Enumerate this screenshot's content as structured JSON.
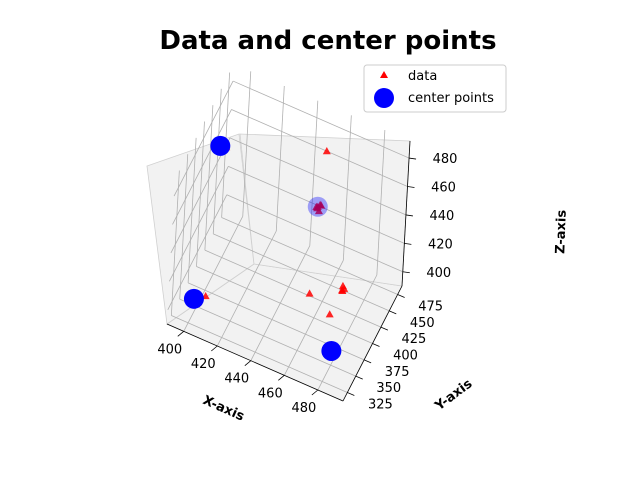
{
  "chart_data": {
    "type": "scatter",
    "projection": "3d",
    "title": "Data and center points",
    "xlabel": "X-axis",
    "ylabel": "Y-axis",
    "zlabel": "Z-axis",
    "xlim": [
      390,
      495
    ],
    "ylim": [
      312,
      488
    ],
    "zlim": [
      390,
      492
    ],
    "xticks": [
      400,
      420,
      440,
      460,
      480
    ],
    "yticks": [
      325,
      350,
      375,
      400,
      425,
      450,
      475
    ],
    "zticks": [
      400,
      420,
      440,
      460,
      480
    ],
    "grid": true,
    "legend_position": "upper-right",
    "series": [
      {
        "name": "data",
        "marker": "triangle",
        "color": "#ff0000",
        "points": [
          [
            400,
            400,
            480
          ],
          [
            401,
            401,
            481
          ],
          [
            402,
            399,
            482
          ],
          [
            399,
            402,
            479
          ],
          [
            400,
            399,
            483
          ],
          [
            402,
            402,
            478
          ],
          [
            398,
            400,
            481
          ],
          [
            401,
            398,
            480
          ],
          [
            400,
            420,
            470
          ],
          [
            480,
            350,
            400
          ],
          [
            481,
            352,
            401
          ],
          [
            479,
            351,
            399
          ],
          [
            482,
            350,
            402
          ],
          [
            480,
            348,
            400
          ],
          [
            481,
            349,
            398
          ],
          [
            470,
            395,
            400
          ],
          [
            455,
            410,
            400
          ],
          [
            400,
            340,
            400
          ],
          [
            401,
            341,
            401
          ],
          [
            402,
            339,
            400
          ],
          [
            399,
            342,
            399
          ],
          [
            401,
            340,
            402
          ],
          [
            402,
            341,
            398
          ],
          [
            405,
            350,
            400
          ],
          [
            450,
            450,
            440
          ],
          [
            451,
            452,
            441
          ],
          [
            449,
            451,
            439
          ],
          [
            452,
            450,
            442
          ],
          [
            450,
            448,
            440
          ],
          [
            451,
            449,
            438
          ],
          [
            450,
            470,
            470
          ],
          [
            470,
            432,
            400
          ],
          [
            470,
            434,
            402
          ],
          [
            471,
            433,
            401
          ],
          [
            470,
            433,
            399
          ]
        ]
      },
      {
        "name": "center points",
        "marker": "circle",
        "color": "#0000ff",
        "points": [
          [
            400,
            400,
            480
          ],
          [
            480,
            350,
            400
          ],
          [
            400,
            340,
            400
          ],
          [
            450,
            450,
            440
          ]
        ]
      }
    ]
  }
}
